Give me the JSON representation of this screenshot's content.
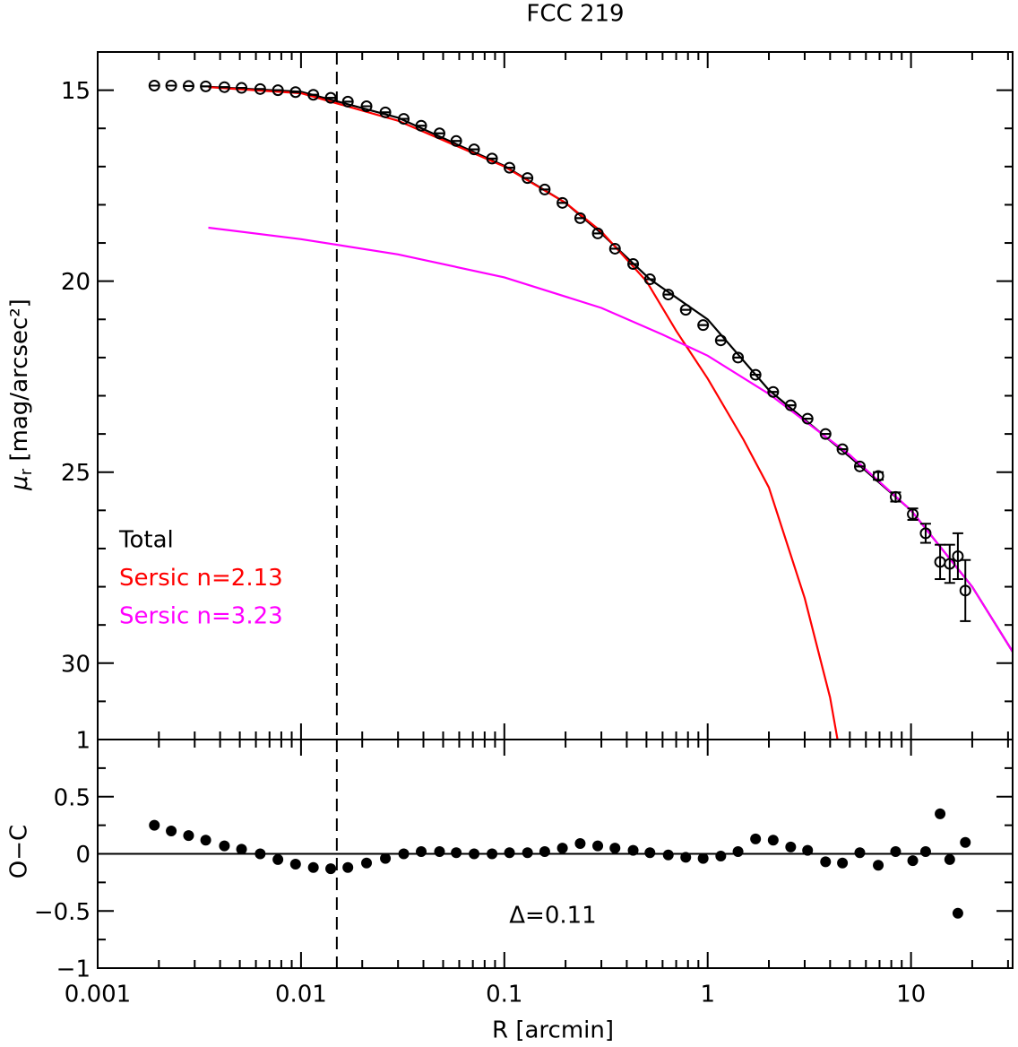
{
  "chart_data": [
    {
      "type": "profile",
      "title": "FCC 219",
      "y_label": {
        "symbol": "μ",
        "subscript": "r",
        "text": " [mag/arcsec²]"
      },
      "xscale": "log",
      "xlim": [
        0.001,
        31.6
      ],
      "xticks": [
        0.001,
        0.01,
        0.1,
        1,
        10
      ],
      "xticks_minor": [
        0.002,
        0.003,
        0.004,
        0.005,
        0.006,
        0.007,
        0.008,
        0.009,
        0.02,
        0.03,
        0.04,
        0.05,
        0.06,
        0.07,
        0.08,
        0.09,
        0.2,
        0.3,
        0.4,
        0.5,
        0.6,
        0.7,
        0.8,
        0.9,
        2,
        3,
        4,
        5,
        6,
        7,
        8,
        9,
        20,
        30
      ],
      "ylim": [
        32,
        14
      ],
      "yticks": [
        15,
        20,
        25,
        30
      ],
      "yticks_minor": [
        14,
        16,
        17,
        18,
        19,
        21,
        22,
        23,
        24,
        26,
        27,
        28,
        29,
        31,
        32
      ],
      "vline": 0.015,
      "series": [
        {
          "kind": "points",
          "color": "#000000",
          "x": [
            0.0019,
            0.0023,
            0.0028,
            0.0034,
            0.0042,
            0.0051,
            0.0063,
            0.0077,
            0.0094,
            0.0115,
            0.014,
            0.017,
            0.021,
            0.026,
            0.032,
            0.039,
            0.048,
            0.058,
            0.071,
            0.087,
            0.106,
            0.13,
            0.158,
            0.193,
            0.236,
            0.288,
            0.35,
            0.43,
            0.52,
            0.64,
            0.78,
            0.95,
            1.16,
            1.41,
            1.72,
            2.1,
            2.56,
            3.1,
            3.8,
            4.6,
            5.6,
            6.9,
            8.4,
            10.2,
            11.8,
            13.9,
            15.5,
            17.0,
            18.5
          ],
          "values": [
            14.88,
            14.88,
            14.89,
            14.9,
            14.92,
            14.94,
            14.97,
            15.0,
            15.05,
            15.12,
            15.2,
            15.3,
            15.42,
            15.58,
            15.75,
            15.93,
            16.13,
            16.33,
            16.55,
            16.79,
            17.03,
            17.3,
            17.6,
            17.95,
            18.35,
            18.75,
            19.15,
            19.55,
            19.95,
            20.35,
            20.75,
            21.15,
            21.55,
            22.0,
            22.45,
            22.9,
            23.25,
            23.6,
            24.0,
            24.4,
            24.85,
            25.1,
            25.65,
            26.1,
            26.6,
            27.35,
            27.4,
            27.2,
            28.1
          ],
          "errors": [
            0,
            0,
            0,
            0,
            0,
            0,
            0,
            0,
            0,
            0,
            0,
            0,
            0,
            0,
            0,
            0,
            0,
            0,
            0,
            0,
            0,
            0,
            0,
            0,
            0,
            0,
            0,
            0,
            0,
            0,
            0,
            0,
            0,
            0,
            0,
            0,
            0,
            0,
            0,
            0,
            0,
            0.1,
            0.12,
            0.15,
            0.25,
            0.45,
            0.5,
            0.6,
            0.8
          ]
        },
        {
          "kind": "curve",
          "name": "Total",
          "color": "#000000",
          "x": [
            0.0035,
            0.01,
            0.03,
            0.1,
            0.2,
            0.3,
            0.52,
            1,
            2,
            5,
            10,
            20,
            31.6
          ],
          "values": [
            14.91,
            15.04,
            15.72,
            16.98,
            17.95,
            18.75,
            19.95,
            21.0,
            22.85,
            24.6,
            26.0,
            28.0,
            29.7
          ]
        },
        {
          "kind": "curve",
          "name": "Sersic n=2.13",
          "color": "#ff0000",
          "x": [
            0.0035,
            0.01,
            0.03,
            0.1,
            0.2,
            0.3,
            0.5,
            0.7,
            1,
            1.5,
            2,
            3,
            4,
            4.35
          ],
          "values": [
            14.92,
            15.08,
            15.8,
            17.0,
            17.95,
            18.7,
            20.0,
            21.3,
            22.55,
            24.15,
            25.4,
            28.3,
            30.9,
            32
          ]
        },
        {
          "kind": "curve",
          "name": "Sersic n=3.23",
          "color": "#ff00ff",
          "x": [
            0.0035,
            0.01,
            0.03,
            0.1,
            0.3,
            0.6,
            1,
            2,
            5,
            10,
            20,
            31.6
          ],
          "values": [
            18.6,
            18.9,
            19.3,
            19.9,
            20.7,
            21.4,
            21.95,
            22.95,
            24.55,
            26.0,
            28.0,
            29.7
          ]
        }
      ]
    },
    {
      "type": "residual",
      "x_label": "R [arcmin]",
      "y_label": "O−C",
      "annotation": "Δ=0.11",
      "xscale": "log",
      "xlim": [
        0.001,
        31.6
      ],
      "xticks": [
        0.001,
        0.01,
        0.1,
        1,
        10
      ],
      "xticks_minor": [
        0.002,
        0.003,
        0.004,
        0.005,
        0.006,
        0.007,
        0.008,
        0.009,
        0.02,
        0.03,
        0.04,
        0.05,
        0.06,
        0.07,
        0.08,
        0.09,
        0.2,
        0.3,
        0.4,
        0.5,
        0.6,
        0.7,
        0.8,
        0.9,
        2,
        3,
        4,
        5,
        6,
        7,
        8,
        9,
        20,
        30
      ],
      "ylim": [
        -1,
        1
      ],
      "yticks": [
        {
          "value": -1,
          "label": "−1"
        },
        {
          "value": -0.5,
          "label": "−0.5"
        },
        0,
        0.5,
        1
      ],
      "yticks_minor": [
        -0.75,
        -0.25,
        0.25,
        0.75
      ],
      "vline": 0.015,
      "hline": 0,
      "series": [
        {
          "kind": "dots",
          "color": "#000000",
          "x": [
            0.0019,
            0.0023,
            0.0028,
            0.0034,
            0.0042,
            0.0051,
            0.0063,
            0.0077,
            0.0094,
            0.0115,
            0.014,
            0.017,
            0.021,
            0.026,
            0.032,
            0.039,
            0.048,
            0.058,
            0.071,
            0.087,
            0.106,
            0.13,
            0.158,
            0.193,
            0.236,
            0.288,
            0.35,
            0.43,
            0.52,
            0.64,
            0.78,
            0.95,
            1.16,
            1.41,
            1.72,
            2.1,
            2.56,
            3.1,
            3.8,
            4.6,
            5.6,
            6.9,
            8.4,
            10.2,
            11.8,
            13.9,
            15.5,
            17.0,
            18.5
          ],
          "values": [
            0.25,
            0.2,
            0.16,
            0.12,
            0.07,
            0.04,
            0.0,
            -0.05,
            -0.09,
            -0.12,
            -0.13,
            -0.12,
            -0.08,
            -0.04,
            0.0,
            0.02,
            0.02,
            0.01,
            0.0,
            0.0,
            0.01,
            0.01,
            0.02,
            0.05,
            0.09,
            0.07,
            0.05,
            0.03,
            0.01,
            -0.01,
            -0.03,
            -0.04,
            -0.02,
            0.02,
            0.13,
            0.12,
            0.06,
            0.03,
            -0.07,
            -0.08,
            0.01,
            -0.1,
            0.02,
            -0.06,
            0.02,
            0.35,
            -0.05,
            -0.52,
            0.1
          ]
        }
      ]
    }
  ]
}
